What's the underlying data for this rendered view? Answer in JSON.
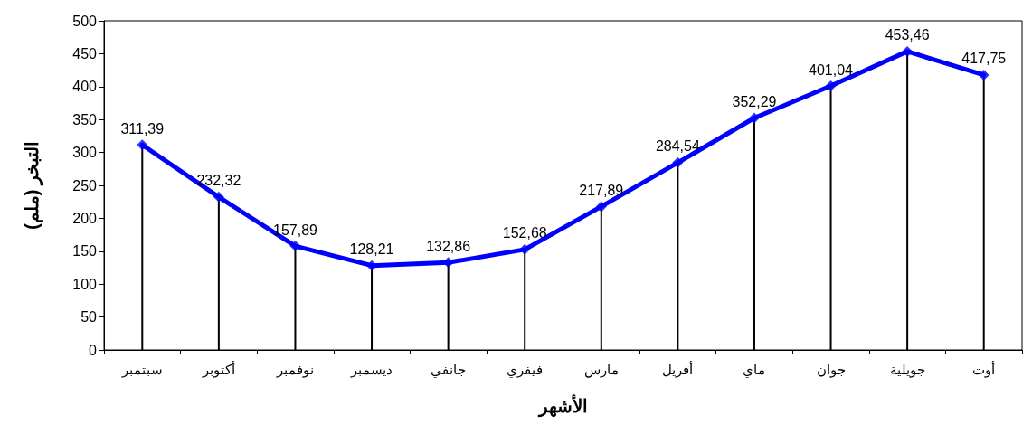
{
  "chart_data": {
    "type": "line",
    "xlabel": "الأشهر",
    "ylabel": "التبخر (ملم)",
    "categories": [
      "سبتمبر",
      "أكتوبر",
      "نوفمبر",
      "ديسمبر",
      "جانفي",
      "فيفري",
      "مارس",
      "أفريل",
      "ماي",
      "جوان",
      "جويلية",
      "أوت"
    ],
    "series": [
      {
        "color": "#0000ff",
        "values": [
          311.39,
          232.32,
          157.89,
          128.21,
          132.86,
          152.68,
          217.89,
          284.54,
          352.29,
          401.04,
          453.46,
          417.75
        ],
        "value_labels": [
          "311,39",
          "232,32",
          "157,89",
          "128,21",
          "132,86",
          "152,68",
          "217,89",
          "284,54",
          "352,29",
          "401,04",
          "453,46",
          "417,75"
        ]
      },
      {
        "type": "lollipop",
        "color": "#0000ff",
        "marker": "diamond",
        "values": [
          311.39,
          232.32,
          157.89,
          128.21,
          132.86,
          152.68,
          217.89,
          284.54,
          352.29,
          401.04,
          453.46,
          417.75
        ]
      }
    ],
    "ylim": [
      0,
      500
    ],
    "yticks": [
      0,
      50,
      100,
      150,
      200,
      250,
      300,
      350,
      400,
      450,
      500
    ],
    "grid": false
  }
}
